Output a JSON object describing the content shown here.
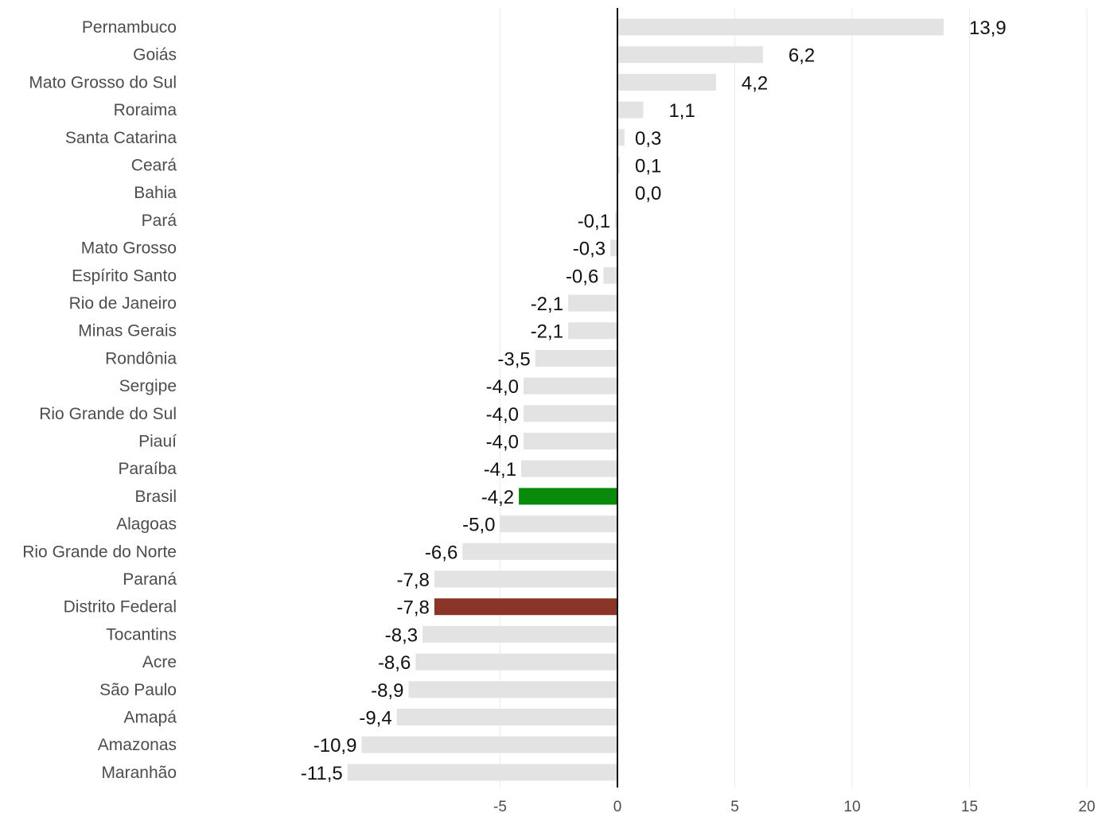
{
  "chart_data": {
    "type": "bar",
    "orientation": "horizontal",
    "title": "",
    "xlabel": "",
    "ylabel": "",
    "xlim": [
      -10,
      20
    ],
    "x_ticks": [
      "-5",
      "0",
      "5",
      "10",
      "15",
      "20"
    ],
    "x_tick_values": [
      -5,
      0,
      5,
      10,
      15,
      20
    ],
    "grid": "vertical",
    "legend": "none",
    "colors": {
      "default": "#e3e3e3",
      "brasil": "#0a8a0a",
      "distrito_federal": "#8b3528",
      "zero_line": "#111111",
      "grid": "#ebebeb"
    },
    "categories": [
      "Pernambuco",
      "Goiás",
      "Mato Grosso do Sul",
      "Roraima",
      "Santa Catarina",
      "Ceará",
      "Bahia",
      "Pará",
      "Mato Grosso",
      "Espírito Santo",
      "Rio de Janeiro",
      "Minas Gerais",
      "Rondônia",
      "Sergipe",
      "Rio Grande do Sul",
      "Piauí",
      "Paraíba",
      "Brasil",
      "Alagoas",
      "Rio Grande do Norte",
      "Paraná",
      "Distrito Federal",
      "Tocantins",
      "Acre",
      "São Paulo",
      "Amapá",
      "Amazonas",
      "Maranhão"
    ],
    "values": [
      13.9,
      6.2,
      4.2,
      1.1,
      0.3,
      0.1,
      0.0,
      -0.1,
      -0.3,
      -0.6,
      -2.1,
      -2.1,
      -3.5,
      -4.0,
      -4.0,
      -4.0,
      -4.1,
      -4.2,
      -5.0,
      -6.6,
      -7.8,
      -7.8,
      -8.3,
      -8.6,
      -8.9,
      -9.4,
      -10.9,
      -11.5
    ],
    "value_labels": [
      "13,9",
      "6,2",
      "4,2",
      "1,1",
      "0,3",
      "0,1",
      "0,0",
      "-0,1",
      "-0,3",
      "-0,6",
      "-2,1",
      "-2,1",
      "-3,5",
      "-4,0",
      "-4,0",
      "-4,0",
      "-4,1",
      "-4,2",
      "-5,0",
      "-6,6",
      "-7,8",
      "-7,8",
      "-8,3",
      "-8,6",
      "-8,9",
      "-9,4",
      "-10,9",
      "-11,5"
    ],
    "highlights": {
      "Brasil": "brasil",
      "Distrito Federal": "distrito_federal"
    }
  }
}
